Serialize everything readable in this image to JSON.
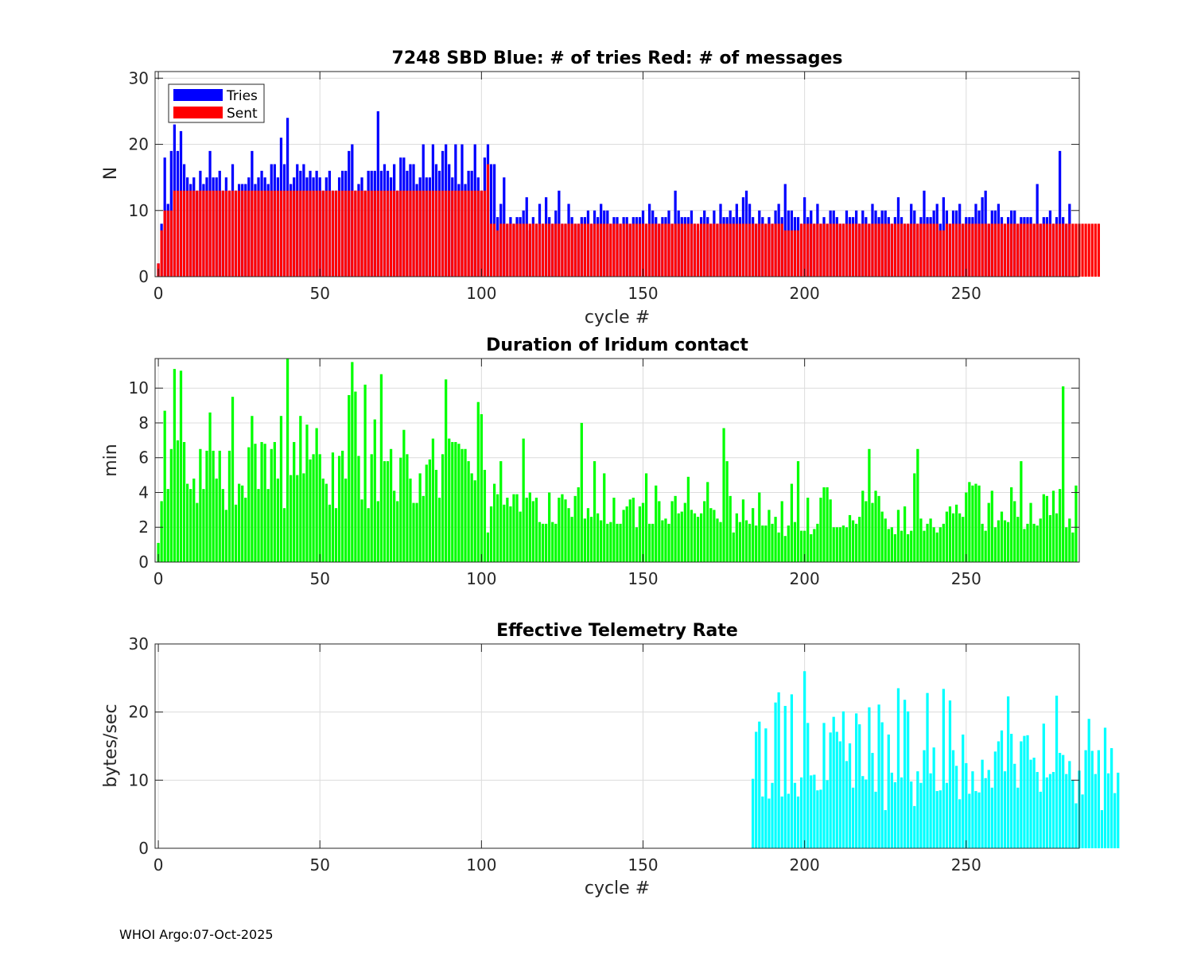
{
  "footer": "WHOI Argo:07-Oct-2025",
  "colors": {
    "tries": "#0000ff",
    "sent": "#ff0000",
    "duration": "#00ff00",
    "rate": "#00ffff",
    "grid": "#dcdcdc",
    "axis": "#262626"
  },
  "chart_data": [
    {
      "type": "bar",
      "title": "7248 SBD  Blue: # of tries   Red: # of messages",
      "xlabel": "cycle #",
      "ylabel": "N",
      "xlim": [
        -1,
        285
      ],
      "ylim": [
        0,
        31
      ],
      "xticks": [
        0,
        50,
        100,
        150,
        200,
        250
      ],
      "yticks": [
        0,
        10,
        20,
        30
      ],
      "legend": {
        "position": "top-left",
        "entries": [
          "Tries",
          "Sent"
        ]
      },
      "series": [
        {
          "name": "Tries",
          "color": "#0000ff",
          "values": [
            2,
            8,
            18,
            11,
            19,
            23,
            19,
            22,
            17,
            15,
            14,
            15,
            13,
            16,
            14,
            15,
            19,
            15,
            15,
            16,
            13,
            15,
            13,
            17,
            13,
            14,
            14,
            14,
            15,
            19,
            14,
            15,
            16,
            15,
            14,
            17,
            17,
            15,
            21,
            17,
            24,
            14,
            15,
            17,
            16,
            17,
            15,
            16,
            15,
            16,
            15,
            13,
            15,
            16,
            13,
            13,
            15,
            16,
            16,
            19,
            20,
            13,
            14,
            15,
            13,
            16,
            16,
            16,
            25,
            16,
            17,
            16,
            15,
            17,
            13,
            18,
            18,
            16,
            17,
            17,
            14,
            15,
            20,
            15,
            15,
            20,
            17,
            16,
            19,
            20,
            17,
            15,
            20,
            14,
            20,
            14,
            16,
            16,
            20,
            15,
            13,
            18,
            20,
            17,
            17,
            9,
            11,
            15,
            8,
            9,
            8,
            9,
            9,
            10,
            12,
            7,
            9,
            8,
            11,
            8,
            12,
            9,
            8,
            10,
            13,
            8,
            8,
            11,
            9,
            8,
            8,
            9,
            9,
            10,
            8,
            10,
            9,
            11,
            10,
            10,
            8,
            9,
            9,
            8,
            9,
            9,
            8,
            9,
            9,
            9,
            10,
            8,
            11,
            10,
            9,
            8,
            9,
            9,
            10,
            8,
            13,
            10,
            9,
            9,
            9,
            10,
            8,
            7,
            9,
            10,
            9,
            8,
            10,
            8,
            11,
            9,
            9,
            10,
            9,
            11,
            9,
            12,
            13,
            11,
            9,
            8,
            10,
            9,
            8,
            9,
            8,
            10,
            11,
            9,
            14,
            10,
            10,
            9,
            9,
            8,
            12,
            9,
            10,
            8,
            11,
            8,
            9,
            8,
            10,
            10,
            9,
            8,
            8,
            10,
            9,
            9,
            10,
            8,
            10,
            9,
            8,
            11,
            10,
            9,
            10,
            10,
            9,
            8,
            9,
            12,
            9,
            8,
            8,
            11,
            10,
            8,
            9,
            13,
            9,
            9,
            10,
            11,
            8,
            12,
            10,
            8,
            10,
            10,
            11,
            8,
            9,
            9,
            9,
            11,
            10,
            12,
            13,
            8,
            10,
            10,
            11,
            9,
            8,
            9,
            10,
            10,
            8,
            9,
            9,
            9,
            9,
            8,
            14,
            8,
            9,
            9,
            10,
            8,
            9,
            19,
            9,
            8,
            11
          ]
        },
        {
          "name": "Sent",
          "color": "#ff0000",
          "values": [
            2,
            7,
            10,
            10,
            10,
            13,
            13,
            13,
            13,
            13,
            13,
            13,
            13,
            13,
            13,
            13,
            13,
            13,
            13,
            13,
            13,
            13,
            13,
            13,
            13,
            13,
            13,
            13,
            13,
            13,
            13,
            13,
            13,
            13,
            13,
            13,
            13,
            13,
            13,
            13,
            13,
            13,
            13,
            13,
            13,
            13,
            13,
            13,
            13,
            13,
            13,
            13,
            13,
            13,
            13,
            13,
            13,
            13,
            13,
            13,
            13,
            13,
            13,
            13,
            13,
            13,
            13,
            13,
            13,
            13,
            13,
            13,
            13,
            13,
            13,
            13,
            13,
            13,
            13,
            13,
            13,
            13,
            13,
            13,
            13,
            13,
            13,
            13,
            13,
            13,
            13,
            13,
            13,
            13,
            13,
            13,
            13,
            13,
            13,
            13,
            13,
            13,
            17,
            8,
            8,
            7,
            8,
            8,
            8,
            8,
            8,
            8,
            8,
            8,
            8,
            8,
            8,
            8,
            8,
            8,
            8,
            8,
            8,
            8,
            8,
            8,
            8,
            8,
            8,
            8,
            8,
            8,
            8,
            8,
            8,
            8,
            8,
            8,
            8,
            8,
            8,
            8,
            8,
            8,
            8,
            8,
            8,
            8,
            8,
            8,
            8,
            8,
            8,
            8,
            8,
            8,
            8,
            8,
            8,
            8,
            8,
            8,
            8,
            8,
            8,
            8,
            8,
            8,
            8,
            8,
            8,
            8,
            8,
            8,
            8,
            8,
            8,
            8,
            8,
            8,
            8,
            8,
            8,
            8,
            8,
            8,
            8,
            8,
            8,
            8,
            8,
            8,
            8,
            8,
            7,
            7,
            7,
            7,
            7,
            8,
            8,
            8,
            8,
            8,
            8,
            8,
            8,
            8,
            8,
            8,
            8,
            8,
            8,
            8,
            8,
            8,
            8,
            8,
            8,
            8,
            8,
            8,
            8,
            8,
            8,
            8,
            8,
            8,
            8,
            8,
            8,
            8,
            8,
            8,
            8,
            8,
            8,
            8,
            8,
            8,
            8,
            8,
            7,
            7,
            8,
            8,
            8,
            8,
            8,
            8,
            8,
            8,
            8,
            8,
            8,
            8,
            8,
            8,
            8,
            8,
            8,
            8,
            8,
            8,
            8,
            8,
            8,
            8,
            8,
            8,
            8,
            8,
            8,
            8,
            8,
            8,
            8,
            8,
            8,
            8,
            8,
            8,
            8,
            8,
            8,
            8,
            8,
            8,
            8,
            8,
            8,
            8
          ]
        }
      ]
    },
    {
      "type": "bar",
      "title": "Duration of Iridum contact",
      "xlabel": "",
      "ylabel": "min",
      "xlim": [
        -1,
        285
      ],
      "ylim": [
        0,
        11.7
      ],
      "xticks": [
        0,
        50,
        100,
        150,
        200,
        250
      ],
      "yticks": [
        0,
        2,
        4,
        6,
        8,
        10
      ],
      "color": "#00ff00",
      "values": [
        1.1,
        3.5,
        8.7,
        4.2,
        6.5,
        11.1,
        7.0,
        11.0,
        6.9,
        4.5,
        4.2,
        4.8,
        3.4,
        6.5,
        4.2,
        6.4,
        8.6,
        6.4,
        4.8,
        6.4,
        4.2,
        3.0,
        6.4,
        9.5,
        3.3,
        4.5,
        4.4,
        3.7,
        6.6,
        8.4,
        6.8,
        4.2,
        6.9,
        6.8,
        4.2,
        6.5,
        6.9,
        4.8,
        8.4,
        3.1,
        11.7,
        5.0,
        6.9,
        5.0,
        8.4,
        5.1,
        7.9,
        5.9,
        6.2,
        7.7,
        6.2,
        4.8,
        4.5,
        3.3,
        6.3,
        3.1,
        6.1,
        6.4,
        4.8,
        9.6,
        11.5,
        9.8,
        6.1,
        3.6,
        10.2,
        3.1,
        6.2,
        8.2,
        3.5,
        10.8,
        5.8,
        5.8,
        6.5,
        4.1,
        3.5,
        6.0,
        7.6,
        6.2,
        4.8,
        3.4,
        3.4,
        5.1,
        3.8,
        5.6,
        5.9,
        7.1,
        5.3,
        3.7,
        6.2,
        10.5,
        7.1,
        6.9,
        6.9,
        6.8,
        6.5,
        6.5,
        5.8,
        5.1,
        4.7,
        9.2,
        8.5,
        5.3,
        1.7,
        3.2,
        4.5,
        3.9,
        5.8,
        3.3,
        3.7,
        3.2,
        3.9,
        3.9,
        2.9,
        7.1,
        3.7,
        4.0,
        3.5,
        3.7,
        2.3,
        2.2,
        2.2,
        4.0,
        2.3,
        2.2,
        3.7,
        3.9,
        3.6,
        3.1,
        2.6,
        3.8,
        4.3,
        8.0,
        2.5,
        3.1,
        2.6,
        5.8,
        2.8,
        2.4,
        5.1,
        2.2,
        2.3,
        3.7,
        2.2,
        2.2,
        3.0,
        3.2,
        3.6,
        3.7,
        2.0,
        3.2,
        3.4,
        5.1,
        2.2,
        2.2,
        4.4,
        3.5,
        2.4,
        2.5,
        2.2,
        3.5,
        3.8,
        2.8,
        2.9,
        3.4,
        4.9,
        3.0,
        2.8,
        2.6,
        2.8,
        3.5,
        4.6,
        3.1,
        3.0,
        2.5,
        2.3,
        7.7,
        5.8,
        3.8,
        1.7,
        2.8,
        2.3,
        3.6,
        2.4,
        2.2,
        3.1,
        2.1,
        4.0,
        2.1,
        2.1,
        3.0,
        2.2,
        2.6,
        1.7,
        3.5,
        1.5,
        2.1,
        4.5,
        2.3,
        5.8,
        1.8,
        1.8,
        3.7,
        1.6,
        1.9,
        2.2,
        3.7,
        4.3,
        4.3,
        3.6,
        2.0,
        2.0,
        2.0,
        2.1,
        2.0,
        2.7,
        2.4,
        2.2,
        2.6,
        4.1,
        3.5,
        6.5,
        3.4,
        4.1,
        3.8,
        2.9,
        2.5,
        1.9,
        2.0,
        1.6,
        3.0,
        1.8,
        3.2,
        1.6,
        1.8,
        5.1,
        6.5,
        2.5,
        1.8,
        2.2,
        2.5,
        2.0,
        1.7,
        2.0,
        2.2,
        2.9,
        3.2,
        2.8,
        3.3,
        2.8,
        2.6,
        4.0,
        4.6,
        4.4,
        4.5,
        4.4,
        2.2,
        1.8,
        3.4,
        4.1,
        2.0,
        2.4,
        2.9,
        2.4,
        2.3,
        4.3,
        3.5,
        2.6,
        5.8,
        1.9,
        2.2,
        3.4,
        2.2,
        2.1,
        2.5,
        3.9,
        3.8,
        2.7,
        4.1,
        2.8,
        4.2,
        10.1,
        2.0,
        2.5,
        1.7,
        4.4
      ]
    },
    {
      "type": "bar",
      "title": "Effective Telemetry Rate",
      "xlabel": "cycle #",
      "ylabel": "bytes/sec",
      "xlim": [
        -1,
        285
      ],
      "ylim": [
        0,
        30
      ],
      "xticks": [
        0,
        50,
        100,
        150,
        200,
        250
      ],
      "yticks": [
        0,
        10,
        20,
        30
      ],
      "color": "#00ffff",
      "x_start": 184,
      "values": [
        10.2,
        17.1,
        18.6,
        7.6,
        17.6,
        7.3,
        9.6,
        21.4,
        22.9,
        7.6,
        20.9,
        8.0,
        22.6,
        9.6,
        7.6,
        10.4,
        26.0,
        18.4,
        10.7,
        10.8,
        8.5,
        8.6,
        18.4,
        10.0,
        17.0,
        19.3,
        17.1,
        15.7,
        20.1,
        12.8,
        15.4,
        8.9,
        19.8,
        18.2,
        10.6,
        10.1,
        20.7,
        14.0,
        8.3,
        21.1,
        18.5,
        5.6,
        16.7,
        11.1,
        9.7,
        23.5,
        10.4,
        21.8,
        20.1,
        9.8,
        6.2,
        11.3,
        9.6,
        14.4,
        22.8,
        11.0,
        14.8,
        8.4,
        8.5,
        23.4,
        9.6,
        21.7,
        14.4,
        12.1,
        7.2,
        16.7,
        12.5,
        8.0,
        11.3,
        8.4,
        8.2,
        13.0,
        10.3,
        11.5,
        8.9,
        14.2,
        15.7,
        17.3,
        11.3,
        22.3,
        16.8,
        12.4,
        8.9,
        15.7,
        16.5,
        16.6,
        13.0,
        13.3,
        11.2,
        8.3,
        18.3,
        10.4,
        10.9,
        11.2,
        22.4,
        14.0,
        13.7,
        10.9,
        12.8,
        10.0,
        6.6,
        11.4,
        7.9,
        14.4,
        19.0,
        14.3,
        10.9,
        14.4,
        5.6,
        17.7,
        11.0,
        14.7,
        8.1,
        11.1
      ]
    }
  ]
}
